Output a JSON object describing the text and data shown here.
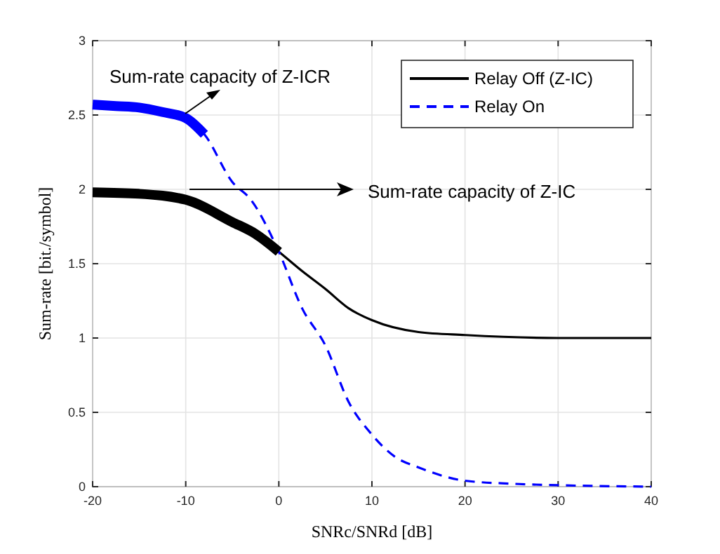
{
  "chart_data": {
    "type": "line",
    "xlabel": "SNRc/SNRd [dB]",
    "ylabel": "Sum-rate [bit./symbol]",
    "xlim": [
      -20,
      40
    ],
    "xticks": [
      -20,
      -10,
      0,
      10,
      20,
      30,
      40
    ],
    "ylim": [
      0,
      3
    ],
    "yticks": [
      0,
      0.5,
      1,
      1.5,
      2,
      2.5,
      3
    ],
    "grid": true,
    "legend": "top right",
    "annotations": [
      "Sum-rate capacity of Z-ICR",
      "Sum-rate capacity of Z-IC"
    ],
    "series": [
      {
        "name": "Relay Off (Z-IC)",
        "color": "#000000",
        "line_style": "solid",
        "x": [
          -20,
          -15,
          -10,
          -5,
          -2.5,
          0,
          2.5,
          5,
          7.5,
          10,
          15,
          20,
          30,
          40
        ],
        "values": [
          1.98,
          1.97,
          1.93,
          1.78,
          1.7,
          1.58,
          1.45,
          1.33,
          1.2,
          1.12,
          1.04,
          1.02,
          1.0,
          1.0
        ]
      },
      {
        "name": "Relay On",
        "color": "#0000ff",
        "line_style": "dashed",
        "x": [
          -20,
          -17.5,
          -15,
          -12.5,
          -10,
          -8,
          -5,
          -3,
          0,
          2.5,
          5,
          7.5,
          10,
          12.5,
          15,
          20,
          25,
          30,
          40
        ],
        "values": [
          2.57,
          2.56,
          2.55,
          2.52,
          2.48,
          2.37,
          2.05,
          1.93,
          1.58,
          1.2,
          0.95,
          0.57,
          0.35,
          0.2,
          0.13,
          0.04,
          0.02,
          0.01,
          0
        ]
      },
      {
        "color": "#000000",
        "line_style": "solid",
        "x": [
          -20,
          -15,
          -10,
          -5,
          -2.5,
          0
        ],
        "values": [
          1.98,
          1.97,
          1.93,
          1.78,
          1.7,
          1.58
        ]
      },
      {
        "color": "#0000ff",
        "line_style": "solid",
        "x": [
          -20,
          -17.5,
          -15,
          -12.5,
          -10,
          -8
        ],
        "values": [
          2.57,
          2.56,
          2.55,
          2.52,
          2.48,
          2.37
        ]
      }
    ]
  }
}
